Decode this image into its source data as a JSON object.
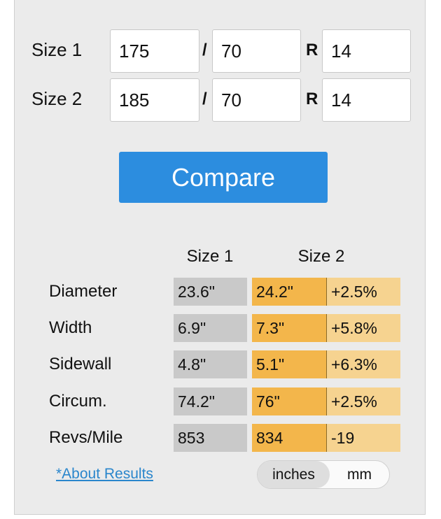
{
  "form": {
    "rows": [
      {
        "label": "Size 1",
        "width": "175",
        "separator": "/",
        "aspect": "70",
        "construction": "R",
        "rim": "14"
      },
      {
        "label": "Size 2",
        "width": "185",
        "separator": "/",
        "aspect": "70",
        "construction": "R",
        "rim": "14"
      }
    ],
    "button": "Compare"
  },
  "results": {
    "headers": [
      "Size 1",
      "Size 2"
    ],
    "rows": [
      {
        "label": "Diameter",
        "size1": "23.6\"",
        "size2": "24.2\"",
        "diff": "+2.5%"
      },
      {
        "label": "Width",
        "size1": "6.9\"",
        "size2": "7.3\"",
        "diff": "+5.8%"
      },
      {
        "label": "Sidewall",
        "size1": "4.8\"",
        "size2": "5.1\"",
        "diff": "+6.3%"
      },
      {
        "label": "Circum.",
        "size1": "74.2\"",
        "size2": "76\"",
        "diff": "+2.5%"
      },
      {
        "label": "Revs/Mile",
        "size1": "853",
        "size2": "834",
        "diff": "-19"
      }
    ]
  },
  "footer": {
    "link": "*About Results",
    "units": [
      "inches",
      "mm"
    ]
  }
}
